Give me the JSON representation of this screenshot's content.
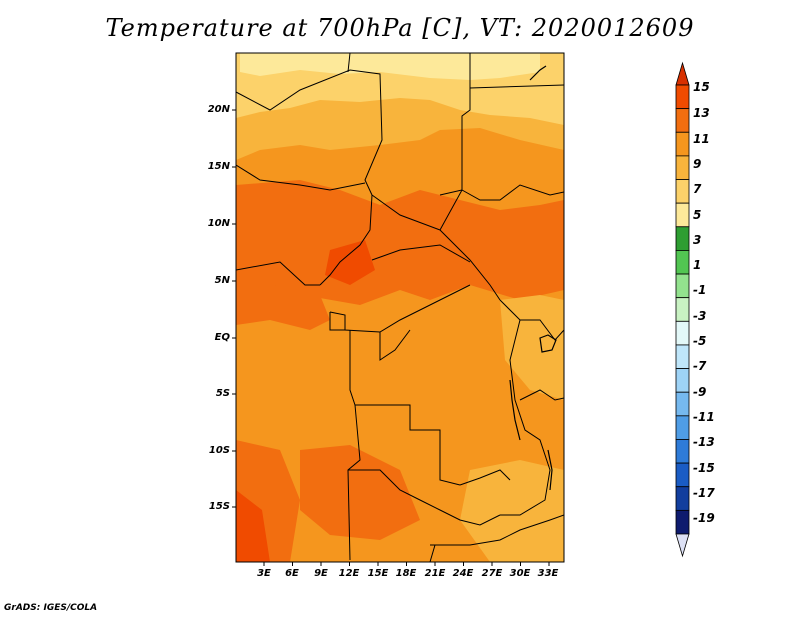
{
  "title": "Temperature at 700hPa [C], VT: 2020012609",
  "credit": "GrADS: IGES/COLA",
  "map": {
    "lat_labels": [
      "20N",
      "15N",
      "10N",
      "5N",
      "EQ",
      "5S",
      "10S",
      "15S"
    ],
    "lon_labels": [
      "3E",
      "6E",
      "9E",
      "12E",
      "15E",
      "18E",
      "21E",
      "24E",
      "27E",
      "30E",
      "33E"
    ]
  },
  "colorbar": {
    "labels": [
      "15",
      "13",
      "11",
      "9",
      "7",
      "5",
      "3",
      "1",
      "-1",
      "-3",
      "-5",
      "-7",
      "-9",
      "-11",
      "-13",
      "-15",
      "-17",
      "-19"
    ],
    "colors": [
      "#d73000",
      "#f04b00",
      "#f26e10",
      "#f5961e",
      "#f8b43c",
      "#fcd26a",
      "#fde99a",
      "#2e9e32",
      "#52c552",
      "#93e28e",
      "#c9f2c3",
      "#e3f8f8",
      "#bfe6fa",
      "#9ed3f6",
      "#76b9ef",
      "#4f9de6",
      "#2e7bd8",
      "#1a5cc4",
      "#123e9e",
      "#0e1b6e",
      "#dde1f5"
    ]
  }
}
